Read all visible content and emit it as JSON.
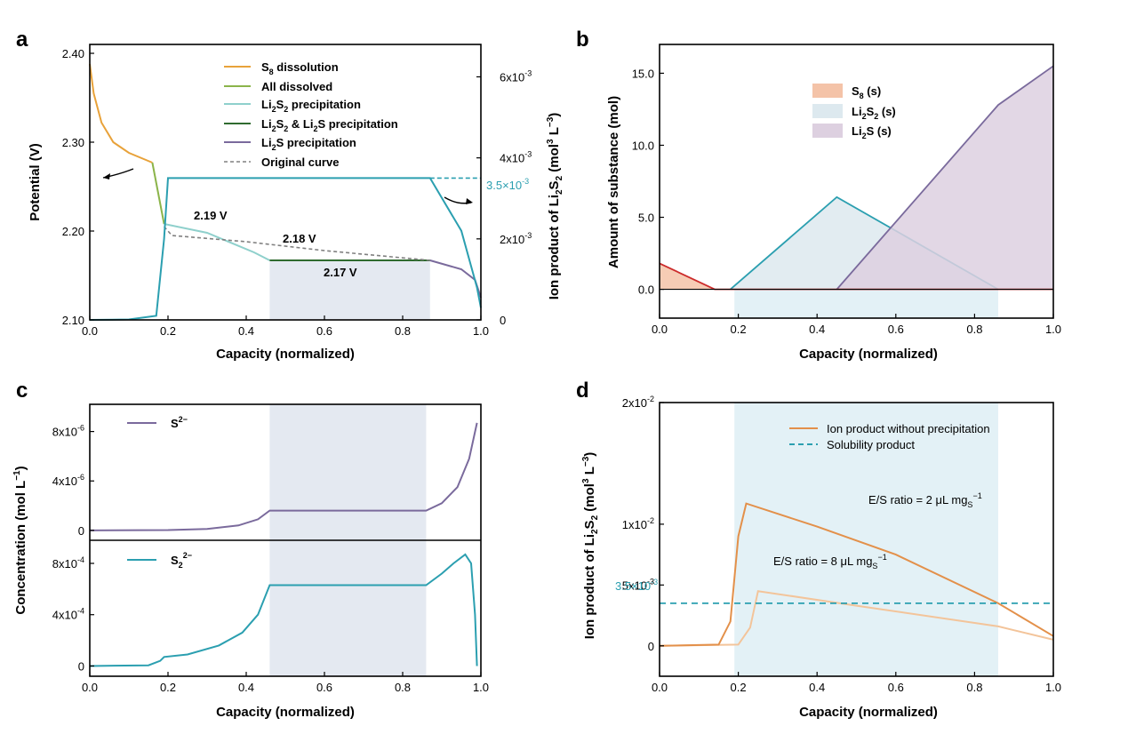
{
  "panels": {
    "a": {
      "letter": "a",
      "xlabel": "Capacity (normalized)",
      "ylabel_left": "Potential (V)",
      "ylabel_right": "Ion product of Li2S2 (mol3 L−3)",
      "xticks": [
        "0.0",
        "0.2",
        "0.4",
        "0.6",
        "0.8",
        "1.0"
      ],
      "yticks_left": [
        "2.10",
        "2.20",
        "2.30",
        "2.40"
      ],
      "yticks_right": [
        "0",
        "2x10-3",
        "4x10-3",
        "6x10-3"
      ],
      "legend": [
        "S8 dissolution",
        "All dissolved",
        "Li2S2 precipitation",
        "Li2S2 & Li2S precipitation",
        "Li2S precipitation",
        "Original curve"
      ],
      "annotations": [
        "2.19 V",
        "2.18 V",
        "2.17 V",
        "3.5×10-3"
      ]
    },
    "b": {
      "letter": "b",
      "xlabel": "Capacity (normalized)",
      "ylabel": "Amount of substance (mol)",
      "xticks": [
        "0.0",
        "0.2",
        "0.4",
        "0.6",
        "0.8",
        "1.0"
      ],
      "yticks": [
        "0.0",
        "5.0",
        "10.0",
        "15.0"
      ],
      "legend": [
        "S8 (s)",
        "Li2S2 (s)",
        "Li2S (s)"
      ]
    },
    "c": {
      "letter": "c",
      "xlabel": "Capacity (normalized)",
      "ylabel": "Concentration (mol L−1)",
      "xticks": [
        "0.0",
        "0.2",
        "0.4",
        "0.6",
        "0.8",
        "1.0"
      ],
      "yticks_top": [
        "0",
        "4x10-6",
        "8x10-6"
      ],
      "yticks_bottom": [
        "0",
        "4x10-4",
        "8x10-4"
      ],
      "legend_top": "S2−",
      "legend_bottom": "S22−"
    },
    "d": {
      "letter": "d",
      "xlabel": "Capacity (normalized)",
      "ylabel": "Ion product of Li2S2 (mol3 L−3)",
      "xticks": [
        "0.0",
        "0.2",
        "0.4",
        "0.6",
        "0.8",
        "1.0"
      ],
      "yticks": [
        "0",
        "5x10-3",
        "1x10-2",
        "2x10-2"
      ],
      "legend": [
        "Ion product without precipitation",
        "Solubility product"
      ],
      "annotations": [
        "E/S ratio = 2 μL mgS−1",
        "E/S ratio = 8 μL mgS−1",
        "3.5×10-3"
      ]
    }
  },
  "colors": {
    "s8_dissolution": "#e8a23a",
    "all_dissolved": "#8bb44a",
    "li2s2_precip": "#8fd0cc",
    "li2s2_li2s_precip": "#2f6b2f",
    "li2s_precip": "#7a6a9c",
    "original": "#808080",
    "teal": "#2b9fb0",
    "shade_grey": "#e4e9f1",
    "shade_blue": "#e3f1f6",
    "s8_fill": "#f4c3a8",
    "li2s2_fill": "#dde9ef",
    "li2s_fill": "#ddd0e0",
    "orange_dark": "#e3904a",
    "orange_light": "#f3c49a"
  },
  "chart_data": [
    {
      "panel": "a",
      "type": "line",
      "xlim": [
        0,
        1
      ],
      "ylim_left": [
        2.1,
        2.41
      ],
      "ylim_right": [
        0,
        0.0068
      ],
      "shaded_region": [
        0.46,
        0.87
      ],
      "series": [
        {
          "name": "S8 dissolution",
          "axis": "left",
          "x": [
            0.0,
            0.01,
            0.03,
            0.06,
            0.1,
            0.16
          ],
          "y": [
            2.388,
            2.355,
            2.322,
            2.3,
            2.288,
            2.277
          ]
        },
        {
          "name": "All dissolved",
          "axis": "left",
          "x": [
            0.16,
            0.19
          ],
          "y": [
            2.277,
            2.208
          ]
        },
        {
          "name": "Li2S2 precipitation",
          "axis": "left",
          "x": [
            0.19,
            0.3,
            0.42,
            0.46
          ],
          "y": [
            2.208,
            2.198,
            2.176,
            2.167
          ]
        },
        {
          "name": "Li2S2 & Li2S precipitation",
          "axis": "left",
          "x": [
            0.46,
            0.87
          ],
          "y": [
            2.167,
            2.167
          ]
        },
        {
          "name": "Li2S precipitation",
          "axis": "left",
          "x": [
            0.87,
            0.95,
            0.985,
            1.0
          ],
          "y": [
            2.167,
            2.157,
            2.145,
            2.125
          ]
        },
        {
          "name": "Original curve",
          "axis": "left",
          "x": [
            0.19,
            0.21,
            0.4,
            0.6,
            0.87
          ],
          "y": [
            2.205,
            2.195,
            2.188,
            2.178,
            2.167
          ]
        },
        {
          "axis": "right",
          "x": [
            0.0,
            0.1,
            0.17,
            0.19,
            0.2,
            0.87,
            0.95,
            0.99,
            1.0
          ],
          "y": [
            0.0,
            1e-05,
            0.0001,
            0.002,
            0.0035,
            0.0035,
            0.0022,
            0.0008,
            0.0003
          ]
        },
        {
          "axis": "right",
          "x": [
            0.87,
            1.0
          ],
          "y": [
            0.0035,
            0.0035
          ],
          "dashed": true
        }
      ]
    },
    {
      "panel": "b",
      "type": "area",
      "xlim": [
        0,
        1
      ],
      "ylim": [
        -2,
        17
      ],
      "shaded_region": [
        0.19,
        0.86
      ],
      "series": [
        {
          "name": "S8 (s)",
          "x": [
            0.0,
            0.14
          ],
          "y": [
            1.8,
            0.0
          ]
        },
        {
          "name": "Li2S2 (s)",
          "x": [
            0.18,
            0.45,
            0.86
          ],
          "y": [
            0.0,
            6.4,
            0.0
          ]
        },
        {
          "name": "Li2S (s)",
          "x": [
            0.45,
            0.86,
            1.0
          ],
          "y": [
            0.0,
            12.8,
            15.5
          ]
        }
      ]
    },
    {
      "panel": "c",
      "type": "line",
      "xlim": [
        0,
        1
      ],
      "shaded_region": [
        0.46,
        0.86
      ],
      "series": [
        {
          "name": "S2−",
          "ylim": [
            -8e-07,
            1.02e-05
          ],
          "x": [
            0.0,
            0.2,
            0.3,
            0.38,
            0.43,
            0.46,
            0.86,
            0.9,
            0.94,
            0.97,
            0.99
          ],
          "y": [
            0.0,
            3e-08,
            1.2e-07,
            4e-07,
            9e-07,
            1.6e-06,
            1.6e-06,
            2.2e-06,
            3.5e-06,
            5.8e-06,
            8.7e-06
          ]
        },
        {
          "name": "S22−",
          "ylim": [
            -8e-05,
            0.00098
          ],
          "x": [
            0.0,
            0.15,
            0.18,
            0.19,
            0.25,
            0.33,
            0.39,
            0.43,
            0.46,
            0.86,
            0.9,
            0.93,
            0.96,
            0.975,
            0.985,
            0.99
          ],
          "y": [
            0.0,
            5e-06,
            4e-05,
            7e-05,
            9e-05,
            0.00016,
            0.00026,
            0.0004,
            0.00063,
            0.00063,
            0.00072,
            0.0008,
            0.00087,
            0.0008,
            0.0004,
            0.0
          ]
        }
      ]
    },
    {
      "panel": "d",
      "type": "line",
      "xlim": [
        0,
        1
      ],
      "ylim": [
        -0.0025,
        0.02
      ],
      "shaded_region": [
        0.19,
        0.86
      ],
      "series": [
        {
          "name": "Ion product without precipitation",
          "x": [
            0.0,
            0.15,
            0.18,
            0.2,
            0.22,
            0.4,
            0.6,
            0.86,
            1.0
          ],
          "y": [
            0.0,
            0.0001,
            0.002,
            0.009,
            0.0117,
            0.0098,
            0.0075,
            0.0035,
            0.0008
          ]
        },
        {
          "x": [
            0.0,
            0.2,
            0.23,
            0.25,
            0.5,
            0.86,
            1.0
          ],
          "y": [
            0.0,
            0.0001,
            0.0015,
            0.0045,
            0.0033,
            0.0016,
            0.0005
          ]
        },
        {
          "name": "Solubility product",
          "x": [
            0.0,
            1.0
          ],
          "y": [
            0.0035,
            0.0035
          ],
          "dashed": true
        }
      ]
    }
  ]
}
